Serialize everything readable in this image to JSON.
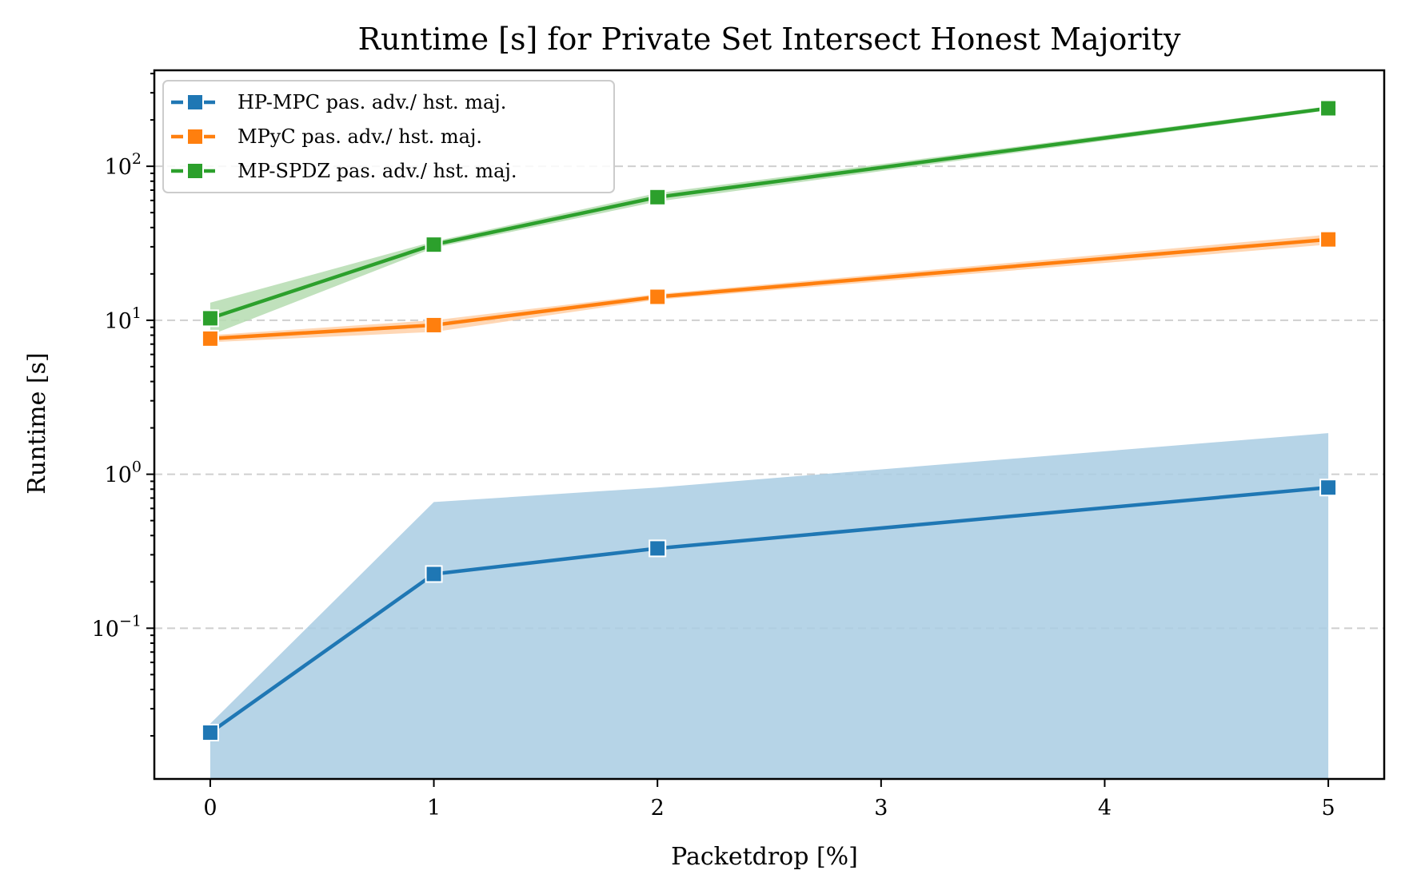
{
  "chart_data": {
    "type": "line",
    "title": "Runtime [s] for Private Set Intersect Honest Majority",
    "xlabel": "Packetdrop [%]",
    "ylabel": "Runtime [s]",
    "x_ticks": [
      "0",
      "1",
      "2",
      "3",
      "4",
      "5"
    ],
    "x_range": [
      -0.25,
      5.25
    ],
    "y_scale": "log",
    "y_range": [
      0.0105,
      420
    ],
    "y_major_ticks": [
      {
        "value": 0.1,
        "base": "10",
        "exp": "−1"
      },
      {
        "value": 1,
        "base": "10",
        "exp": "0"
      },
      {
        "value": 10,
        "base": "10",
        "exp": "1"
      },
      {
        "value": 100,
        "base": "10",
        "exp": "2"
      }
    ],
    "grid": "horizontal dashed at major y ticks",
    "legend_position": "top-left",
    "series": [
      {
        "name": "HP-MPC pas. adv./ hst. maj.",
        "color": "#1f77b4",
        "band_color": "#a9cce3",
        "x": [
          0,
          1,
          2,
          5
        ],
        "y": [
          0.021,
          0.225,
          0.33,
          0.82
        ],
        "band_upper": [
          0.024,
          0.66,
          0.82,
          1.85
        ],
        "band_lower": [
          0.0105,
          0.0105,
          0.0105,
          0.0105
        ]
      },
      {
        "name": "MPyC pas. adv./ hst. maj.",
        "color": "#ff7f0e",
        "band_color": "#ffd0a8",
        "x": [
          0,
          1,
          2,
          5
        ],
        "y": [
          7.6,
          9.3,
          14.2,
          33.5
        ],
        "band_upper": [
          8.0,
          10.0,
          14.8,
          36.0
        ],
        "band_lower": [
          7.2,
          8.4,
          13.6,
          31.0
        ]
      },
      {
        "name": "MP-SPDZ pas. adv./ hst. maj.",
        "color": "#2ca02c",
        "band_color": "#b5dcb0",
        "x": [
          0,
          1,
          2,
          5
        ],
        "y": [
          10.3,
          31.0,
          63.0,
          238.0
        ],
        "band_upper": [
          13.0,
          32.5,
          67.0,
          245.0
        ],
        "band_lower": [
          8.0,
          29.5,
          59.0,
          231.0
        ]
      }
    ]
  }
}
